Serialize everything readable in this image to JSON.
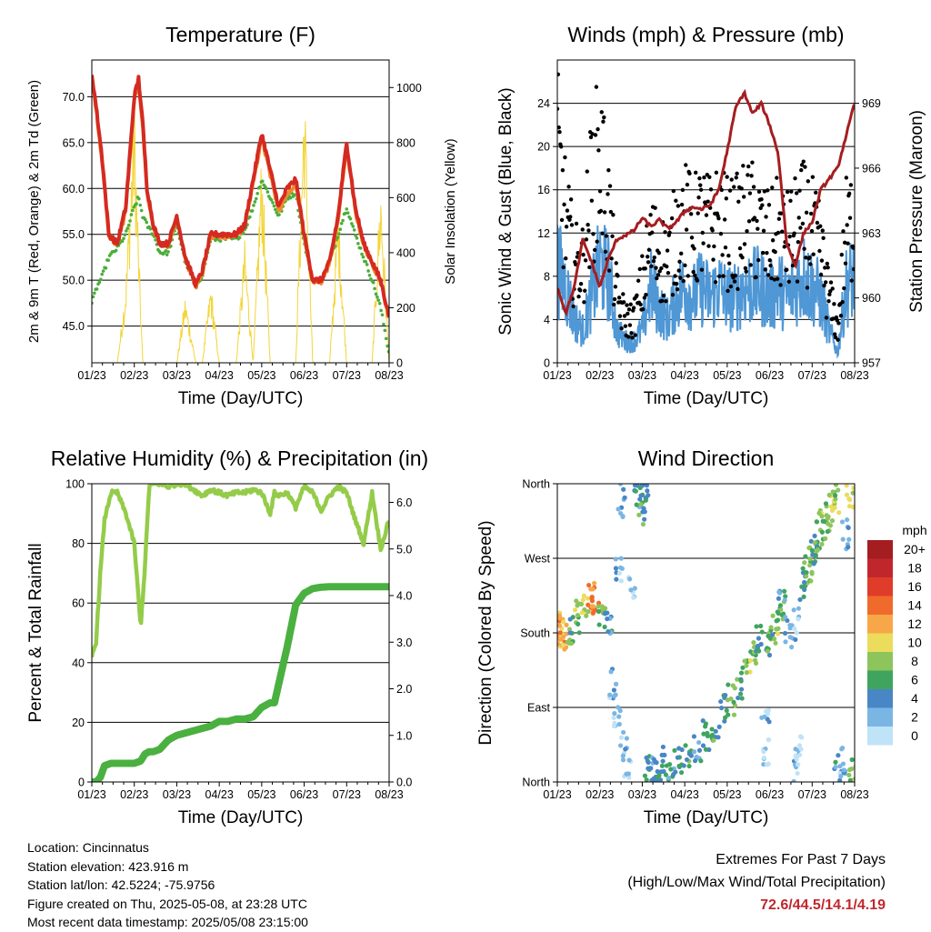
{
  "x_ticks": [
    "01/23",
    "02/23",
    "03/23",
    "04/23",
    "05/23",
    "06/23",
    "07/23",
    "08/23"
  ],
  "colors": {
    "t2m": "#d42a22",
    "t9m": "#f08a2a",
    "td": "#4aae3a",
    "solar": "#f3d53a",
    "wind": "#4f97d5",
    "gust": "#000000",
    "pressure": "#a51d20",
    "rh": "#94cc4a",
    "precip": "#4ab040"
  },
  "chart_data": [
    {
      "type": "line",
      "title": "Temperature (F)",
      "xlabel": "Time (Day/UTC)",
      "ylabel": "2m & 9m T (Red, Orange) & 2m Td (Green)",
      "ylabel_right": "Solar Insolation (Yellow)",
      "ylim": [
        41,
        74
      ],
      "yticks": [
        "45.0",
        "50.0",
        "55.0",
        "60.0",
        "65.0",
        "70.0"
      ],
      "ylim_right": [
        0,
        1100
      ],
      "yticks_right": [
        "0",
        "200",
        "400",
        "600",
        "800",
        "1000"
      ],
      "x": [
        0,
        0.1,
        0.25,
        0.4,
        0.6,
        0.8,
        1.0,
        1.1,
        1.2,
        1.3,
        1.45,
        1.6,
        1.8,
        2.0,
        2.2,
        2.45,
        2.6,
        2.8,
        3.0,
        3.2,
        3.4,
        3.6,
        3.8,
        4.0,
        4.2,
        4.4,
        4.6,
        4.8,
        5.0,
        5.2,
        5.4,
        5.6,
        5.8,
        6.0,
        6.2,
        6.4,
        6.6,
        6.8,
        7.0
      ],
      "series": [
        {
          "name": "2m T",
          "values": [
            72.5,
            69,
            63,
            55,
            54,
            58,
            70,
            72,
            67,
            60,
            56,
            54,
            54,
            57,
            52.5,
            49.5,
            51,
            55,
            55,
            55,
            55,
            56,
            61,
            66,
            62,
            58,
            60,
            61,
            55,
            50,
            50,
            52,
            57,
            65,
            58,
            54,
            52,
            50,
            46
          ]
        },
        {
          "name": "9m T",
          "values": [
            72,
            68.5,
            62.5,
            54.8,
            53.8,
            57.5,
            69.5,
            71.5,
            66.5,
            59.5,
            55.8,
            53.8,
            53.8,
            56.8,
            52.3,
            49.3,
            50.8,
            54.8,
            54.8,
            54.8,
            54.8,
            55.8,
            60.5,
            65.5,
            61.5,
            57.5,
            59.5,
            60.5,
            54.8,
            49.8,
            49.8,
            51.8,
            56.5,
            64.5,
            57.5,
            53.8,
            51.8,
            49.8,
            45.8
          ]
        },
        {
          "name": "2m Td",
          "values": [
            47.5,
            49,
            50.5,
            52.5,
            53.5,
            55,
            58,
            59,
            57,
            56,
            55,
            53,
            53,
            56,
            52,
            49.5,
            50.5,
            54.5,
            54.5,
            54.5,
            54.5,
            55.5,
            58,
            61,
            59,
            57,
            59,
            59.5,
            54,
            50,
            50,
            52,
            55,
            58,
            55,
            52.5,
            50,
            47,
            42
          ]
        },
        {
          "name": "Solar",
          "axis": "right",
          "values": [
            0,
            0,
            0,
            0,
            0,
            300,
            1000,
            450,
            0,
            0,
            0,
            0,
            0,
            0,
            250,
            0,
            0,
            300,
            0,
            0,
            0,
            450,
            0,
            800,
            0,
            0,
            0,
            0,
            1080,
            0,
            0,
            0,
            600,
            0,
            0,
            0,
            0,
            700,
            0
          ]
        }
      ]
    },
    {
      "type": "line",
      "title": "Winds (mph) & Pressure (mb)",
      "xlabel": "Time (Day/UTC)",
      "ylabel": "Sonic Wind & Gust (Blue, Black)",
      "ylabel_right": "Station Pressure (Maroon)",
      "ylim": [
        0,
        28
      ],
      "yticks": [
        "0",
        "4",
        "8",
        "12",
        "16",
        "20",
        "24"
      ],
      "ylim_right": [
        957,
        971
      ],
      "yticks_right": [
        "957",
        "960",
        "963",
        "966",
        "969"
      ],
      "x": [
        0,
        0.2,
        0.4,
        0.6,
        0.8,
        1.0,
        1.2,
        1.4,
        1.6,
        1.8,
        2.0,
        2.2,
        2.4,
        2.6,
        2.8,
        3.0,
        3.2,
        3.4,
        3.6,
        3.8,
        4.0,
        4.2,
        4.4,
        4.6,
        4.8,
        5.0,
        5.2,
        5.4,
        5.6,
        5.8,
        6.0,
        6.2,
        6.4,
        6.6,
        6.8,
        7.0
      ],
      "series": [
        {
          "name": "Sonic Wind",
          "values": [
            9,
            7,
            4,
            3,
            6,
            9,
            8,
            3,
            2,
            2,
            3,
            7,
            5,
            4,
            6,
            7,
            6,
            7,
            6,
            7,
            6,
            6,
            7,
            7,
            7,
            6,
            7,
            6,
            7,
            8,
            7,
            6,
            3,
            1,
            7,
            8
          ]
        },
        {
          "name": "Gust",
          "values": [
            19,
            13,
            9,
            9,
            16,
            19,
            14,
            6,
            4,
            4,
            7,
            11,
            10,
            9,
            12,
            13,
            12,
            13,
            12,
            13,
            12,
            12,
            13,
            13,
            12,
            11,
            12,
            11,
            12,
            13,
            12,
            10,
            6,
            3,
            12,
            13
          ]
        },
        {
          "name": "Pressure",
          "axis": "right",
          "values": [
            960.5,
            959.3,
            960.5,
            962.7,
            961.7,
            960.5,
            961.8,
            962.7,
            962.9,
            963.1,
            963.7,
            963.3,
            963.6,
            963.2,
            963.5,
            964,
            964.2,
            964.1,
            964.3,
            965,
            966.8,
            968.8,
            969.5,
            968.5,
            969,
            968,
            966.7,
            962.5,
            961.5,
            963,
            963.5,
            965,
            965.5,
            966,
            967.5,
            969
          ]
        }
      ]
    },
    {
      "type": "line",
      "title": "Relative Humidity (%) & Precipitation (in)",
      "xlabel": "Time (Day/UTC)",
      "ylabel": "Percent & Total Rainfall",
      "ylim": [
        0,
        100
      ],
      "yticks": [
        "0",
        "20",
        "40",
        "60",
        "80",
        "100"
      ],
      "ylim_right": [
        0,
        6.4
      ],
      "yticks_right": [
        "0.0",
        "1.0",
        "2.0",
        "3.0",
        "4.0",
        "5.0",
        "6.0"
      ],
      "x": [
        0,
        0.1,
        0.2,
        0.3,
        0.45,
        0.6,
        0.8,
        1.0,
        1.15,
        1.25,
        1.35,
        1.45,
        1.6,
        1.8,
        2.0,
        2.2,
        2.4,
        2.6,
        2.8,
        3.0,
        3.2,
        3.4,
        3.6,
        3.8,
        4.0,
        4.2,
        4.3,
        4.4,
        4.6,
        4.8,
        5.0,
        5.2,
        5.4,
        5.6,
        5.8,
        6.0,
        6.2,
        6.4,
        6.6,
        6.8,
        7.0
      ],
      "series": [
        {
          "name": "RH",
          "values": [
            42,
            47,
            70,
            88,
            97,
            97,
            90,
            80,
            52,
            72,
            99,
            100,
            100,
            99,
            100,
            100,
            98,
            96,
            98,
            97,
            96,
            97,
            97,
            98,
            97,
            90,
            97,
            96,
            97,
            92,
            99,
            97,
            91,
            96,
            99,
            97,
            88,
            80,
            97,
            78,
            88
          ]
        },
        {
          "name": "Precip",
          "axis": "right",
          "values": [
            0,
            0,
            0.1,
            0.35,
            0.4,
            0.4,
            0.4,
            0.4,
            0.45,
            0.6,
            0.65,
            0.65,
            0.7,
            0.9,
            1.0,
            1.05,
            1.1,
            1.15,
            1.2,
            1.3,
            1.3,
            1.35,
            1.35,
            1.4,
            1.6,
            1.7,
            1.7,
            2.1,
            2.9,
            3.8,
            4.05,
            4.15,
            4.18,
            4.19,
            4.19,
            4.19,
            4.19,
            4.19,
            4.19,
            4.19,
            4.19
          ]
        }
      ]
    },
    {
      "type": "scatter",
      "title": "Wind Direction",
      "xlabel": "Time (Day/UTC)",
      "ylabel": "Direction (Colored By Speed)",
      "ylim": [
        0,
        360
      ],
      "yticks": [
        "North",
        "East",
        "South",
        "West",
        "North"
      ],
      "legend_title": "mph",
      "legend_labels": [
        "20+",
        "18",
        "16",
        "14",
        "12",
        "10",
        "8",
        "6",
        "4",
        "2",
        "0"
      ],
      "legend_colors": [
        "#a41d20",
        "#c0272d",
        "#e03c2a",
        "#f06a2c",
        "#f8a748",
        "#ecdc5c",
        "#8dc45c",
        "#3fa55e",
        "#4986c6",
        "#7ab6e4",
        "#bfe3f7"
      ],
      "legend_placement": "right",
      "points": [
        {
          "t": 0.05,
          "dir": 185,
          "spd": 11
        },
        {
          "t": 0.1,
          "dir": 180,
          "spd": 12
        },
        {
          "t": 0.2,
          "dir": 175,
          "spd": 10
        },
        {
          "t": 0.35,
          "dir": 185,
          "spd": 6
        },
        {
          "t": 0.5,
          "dir": 200,
          "spd": 8
        },
        {
          "t": 0.65,
          "dir": 210,
          "spd": 9
        },
        {
          "t": 0.8,
          "dir": 220,
          "spd": 13
        },
        {
          "t": 0.9,
          "dir": 215,
          "spd": 12
        },
        {
          "t": 1.05,
          "dir": 205,
          "spd": 7
        },
        {
          "t": 1.2,
          "dir": 190,
          "spd": 4
        },
        {
          "t": 1.3,
          "dir": 120,
          "spd": 2
        },
        {
          "t": 1.4,
          "dir": 80,
          "spd": 1
        },
        {
          "t": 1.45,
          "dir": 250,
          "spd": 2
        },
        {
          "t": 1.5,
          "dir": 340,
          "spd": 3
        },
        {
          "t": 1.55,
          "dir": 40,
          "spd": 1
        },
        {
          "t": 1.65,
          "dir": 20,
          "spd": 2
        },
        {
          "t": 1.75,
          "dir": 230,
          "spd": 1
        },
        {
          "t": 1.9,
          "dir": 350,
          "spd": 4
        },
        {
          "t": 2.0,
          "dir": 330,
          "spd": 6
        },
        {
          "t": 2.05,
          "dir": 345,
          "spd": 5
        },
        {
          "t": 2.15,
          "dir": 15,
          "spd": 5
        },
        {
          "t": 2.25,
          "dir": 10,
          "spd": 3
        },
        {
          "t": 2.35,
          "dir": 20,
          "spd": 4
        },
        {
          "t": 2.5,
          "dir": 25,
          "spd": 5
        },
        {
          "t": 2.7,
          "dir": 20,
          "spd": 4
        },
        {
          "t": 2.9,
          "dir": 25,
          "spd": 5
        },
        {
          "t": 3.1,
          "dir": 30,
          "spd": 6
        },
        {
          "t": 3.3,
          "dir": 40,
          "spd": 4
        },
        {
          "t": 3.5,
          "dir": 55,
          "spd": 5
        },
        {
          "t": 3.7,
          "dir": 70,
          "spd": 6
        },
        {
          "t": 3.9,
          "dir": 85,
          "spd": 5
        },
        {
          "t": 4.1,
          "dir": 100,
          "spd": 7
        },
        {
          "t": 4.3,
          "dir": 120,
          "spd": 6
        },
        {
          "t": 4.5,
          "dir": 140,
          "spd": 8
        },
        {
          "t": 4.65,
          "dir": 160,
          "spd": 7
        },
        {
          "t": 4.75,
          "dir": 175,
          "spd": 5
        },
        {
          "t": 4.9,
          "dir": 70,
          "spd": 2
        },
        {
          "t": 4.9,
          "dir": 40,
          "spd": 1
        },
        {
          "t": 5.0,
          "dir": 170,
          "spd": 6
        },
        {
          "t": 5.1,
          "dir": 185,
          "spd": 8
        },
        {
          "t": 5.25,
          "dir": 200,
          "spd": 6
        },
        {
          "t": 5.3,
          "dir": 215,
          "spd": 4
        },
        {
          "t": 5.45,
          "dir": 180,
          "spd": 3
        },
        {
          "t": 5.6,
          "dir": 190,
          "spd": 2
        },
        {
          "t": 5.65,
          "dir": 20,
          "spd": 2
        },
        {
          "t": 5.7,
          "dir": 40,
          "spd": 1
        },
        {
          "t": 5.8,
          "dir": 240,
          "spd": 5
        },
        {
          "t": 5.9,
          "dir": 255,
          "spd": 6
        },
        {
          "t": 6.0,
          "dir": 270,
          "spd": 8
        },
        {
          "t": 6.05,
          "dir": 280,
          "spd": 5
        },
        {
          "t": 6.15,
          "dir": 295,
          "spd": 7
        },
        {
          "t": 6.25,
          "dir": 310,
          "spd": 8
        },
        {
          "t": 6.35,
          "dir": 320,
          "spd": 7
        },
        {
          "t": 6.45,
          "dir": 335,
          "spd": 9
        },
        {
          "t": 6.55,
          "dir": 345,
          "spd": 8
        },
        {
          "t": 6.6,
          "dir": 15,
          "spd": 4
        },
        {
          "t": 6.7,
          "dir": 25,
          "spd": 2
        },
        {
          "t": 6.8,
          "dir": 300,
          "spd": 3
        },
        {
          "t": 6.9,
          "dir": 350,
          "spd": 9
        },
        {
          "t": 6.95,
          "dir": 10,
          "spd": 8
        }
      ]
    }
  ],
  "info": {
    "location": "Location: Cincinnatus",
    "elevation": "Station elevation: 423.916 m",
    "latlon": "Station lat/lon: 42.5224; -75.9756",
    "created": "Figure created on Thu, 2025-05-08, at 23:28 UTC",
    "recent": "Most recent data timestamp: 2025/05/08 23:15:00"
  },
  "extremes": {
    "title": "Extremes For Past 7 Days",
    "subtitle": "(High/Low/Max Wind/Total Precipitation)",
    "values": "72.6/44.5/14.1/4.19"
  }
}
